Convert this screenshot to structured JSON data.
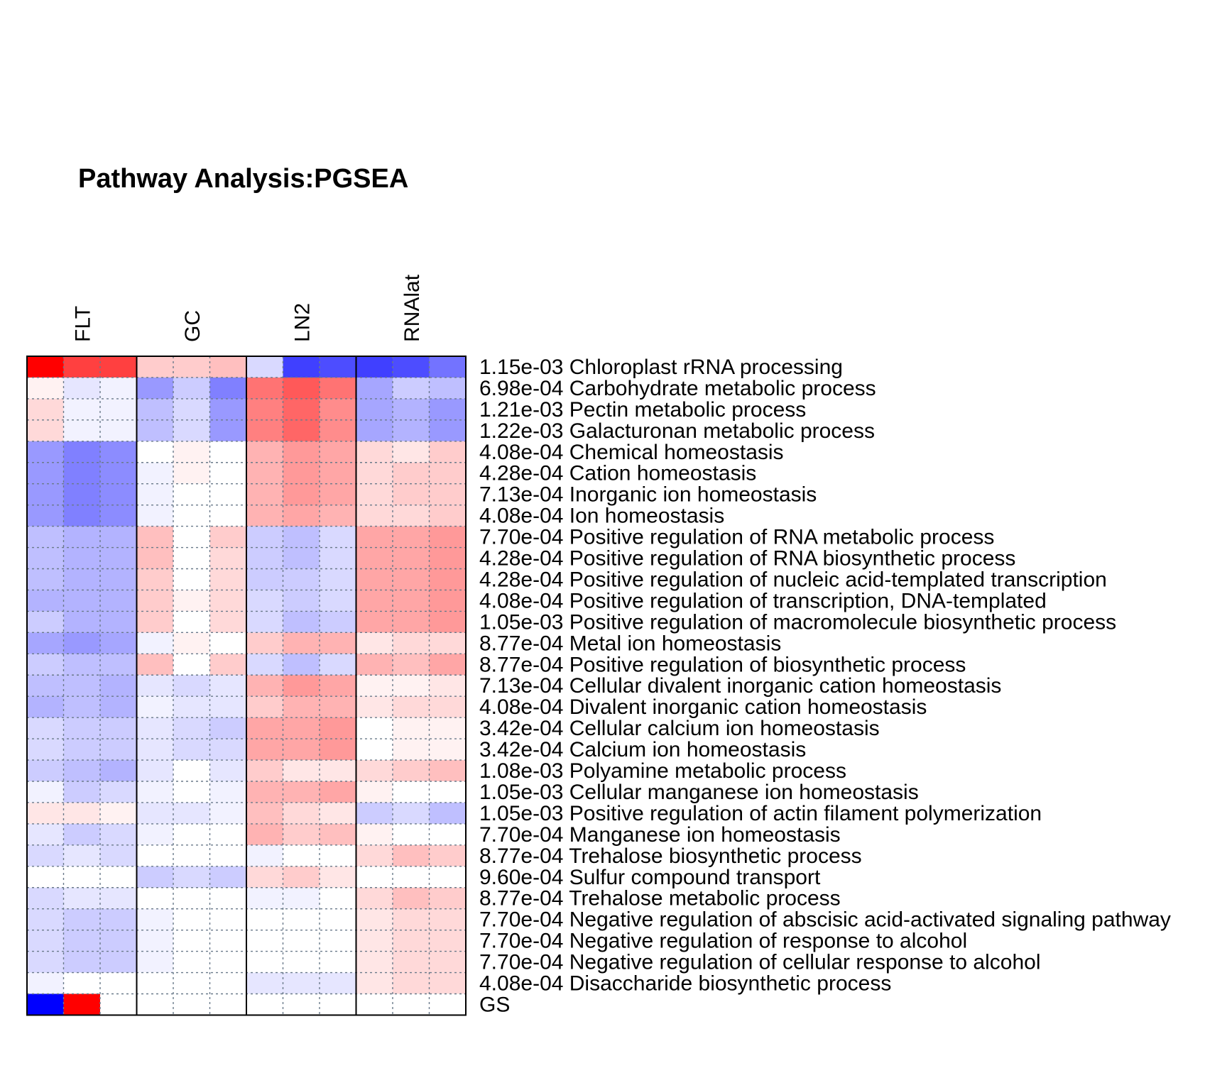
{
  "chart_data": {
    "type": "heatmap",
    "title": "Pathway Analysis:PGSEA",
    "groups": [
      "FLT",
      "GC",
      "LN2",
      "RNAlat"
    ],
    "columns_per_group": 3,
    "color_scale": {
      "low": "#0000ff",
      "mid": "#ffffff",
      "high": "#ff0000",
      "range": [
        -1,
        1
      ]
    },
    "grid": true,
    "rows": [
      {
        "label": "1.15e-03 Chloroplast rRNA processing",
        "values": [
          1.0,
          0.75,
          0.75,
          0.2,
          0.2,
          0.25,
          -0.15,
          -0.75,
          -0.7,
          -0.75,
          -0.7,
          -0.55
        ]
      },
      {
        "label": "6.98e-04 Carbohydrate metabolic process",
        "values": [
          0.05,
          -0.1,
          -0.05,
          -0.4,
          -0.2,
          -0.5,
          0.55,
          0.65,
          0.55,
          -0.35,
          -0.2,
          -0.25
        ]
      },
      {
        "label": "1.21e-03 Pectin metabolic process",
        "values": [
          0.15,
          -0.05,
          -0.05,
          -0.25,
          -0.15,
          -0.4,
          0.5,
          0.6,
          0.45,
          -0.35,
          -0.3,
          -0.4
        ]
      },
      {
        "label": "1.22e-03 Galacturonan metabolic process",
        "values": [
          0.15,
          -0.05,
          -0.05,
          -0.25,
          -0.15,
          -0.4,
          0.5,
          0.6,
          0.45,
          -0.35,
          -0.3,
          -0.4
        ]
      },
      {
        "label": "4.08e-04 Chemical homeostasis",
        "values": [
          -0.4,
          -0.5,
          -0.45,
          0.0,
          0.05,
          0.0,
          0.3,
          0.4,
          0.35,
          0.15,
          0.1,
          0.2
        ]
      },
      {
        "label": "4.28e-04 Cation homeostasis",
        "values": [
          -0.4,
          -0.5,
          -0.45,
          -0.05,
          0.05,
          0.0,
          0.3,
          0.4,
          0.35,
          0.15,
          0.2,
          0.2
        ]
      },
      {
        "label": "7.13e-04 Inorganic ion homeostasis",
        "values": [
          -0.4,
          -0.5,
          -0.45,
          -0.05,
          0.0,
          0.0,
          0.3,
          0.4,
          0.35,
          0.15,
          0.2,
          0.2
        ]
      },
      {
        "label": "4.08e-04 Ion homeostasis",
        "values": [
          -0.4,
          -0.5,
          -0.45,
          -0.05,
          0.0,
          0.0,
          0.3,
          0.35,
          0.3,
          0.15,
          0.15,
          0.2
        ]
      },
      {
        "label": "7.70e-04 Positive regulation of RNA metabolic process",
        "values": [
          -0.25,
          -0.3,
          -0.3,
          0.25,
          0.0,
          0.2,
          -0.2,
          -0.25,
          -0.15,
          0.35,
          0.35,
          0.4
        ]
      },
      {
        "label": "4.28e-04 Positive regulation of RNA biosynthetic process",
        "values": [
          -0.25,
          -0.3,
          -0.3,
          0.25,
          0.0,
          0.15,
          -0.2,
          -0.25,
          -0.15,
          0.35,
          0.35,
          0.4
        ]
      },
      {
        "label": "4.28e-04 Positive regulation of nucleic acid-templated transcription",
        "values": [
          -0.25,
          -0.3,
          -0.3,
          0.2,
          0.0,
          0.15,
          -0.2,
          -0.2,
          -0.15,
          0.35,
          0.35,
          0.4
        ]
      },
      {
        "label": "4.08e-04 Positive regulation of transcription, DNA-templated",
        "values": [
          -0.3,
          -0.3,
          -0.3,
          0.2,
          0.05,
          0.15,
          -0.15,
          -0.2,
          -0.15,
          0.35,
          0.35,
          0.4
        ]
      },
      {
        "label": "1.05e-03 Positive regulation of macromolecule biosynthetic process",
        "values": [
          -0.2,
          -0.3,
          -0.3,
          0.2,
          0.0,
          0.15,
          -0.15,
          -0.25,
          -0.2,
          0.35,
          0.35,
          0.4
        ]
      },
      {
        "label": "8.77e-04 Metal ion homeostasis",
        "values": [
          -0.35,
          -0.4,
          -0.35,
          -0.05,
          0.05,
          0.0,
          0.2,
          0.3,
          0.3,
          0.1,
          0.15,
          0.15
        ]
      },
      {
        "label": "8.77e-04 Positive regulation of biosynthetic process",
        "values": [
          -0.2,
          -0.25,
          -0.25,
          0.25,
          0.0,
          0.2,
          -0.15,
          -0.25,
          -0.15,
          0.3,
          0.25,
          0.35
        ]
      },
      {
        "label": "7.13e-04 Cellular divalent inorganic cation homeostasis",
        "values": [
          -0.25,
          -0.25,
          -0.3,
          -0.1,
          -0.15,
          -0.1,
          0.3,
          0.4,
          0.35,
          0.05,
          0.05,
          0.1
        ]
      },
      {
        "label": "4.08e-04 Divalent inorganic cation homeostasis",
        "values": [
          -0.3,
          -0.25,
          -0.3,
          -0.05,
          -0.1,
          -0.1,
          0.2,
          0.3,
          0.3,
          0.1,
          0.15,
          0.15
        ]
      },
      {
        "label": "3.42e-04 Cellular calcium ion homeostasis",
        "values": [
          -0.15,
          -0.2,
          -0.2,
          -0.1,
          -0.15,
          -0.2,
          0.35,
          0.35,
          0.4,
          0.0,
          0.05,
          0.05
        ]
      },
      {
        "label": "3.42e-04 Calcium ion homeostasis",
        "values": [
          -0.15,
          -0.2,
          -0.2,
          -0.1,
          -0.15,
          -0.15,
          0.35,
          0.35,
          0.4,
          0.0,
          0.05,
          0.05
        ]
      },
      {
        "label": "1.08e-03 Polyamine metabolic process",
        "values": [
          -0.2,
          -0.25,
          -0.3,
          -0.1,
          0.0,
          -0.1,
          0.2,
          0.1,
          0.1,
          0.15,
          0.2,
          0.25
        ]
      },
      {
        "label": "1.05e-03 Cellular manganese ion homeostasis",
        "values": [
          -0.05,
          -0.2,
          -0.15,
          -0.05,
          0.0,
          -0.05,
          0.3,
          0.3,
          0.35,
          0.05,
          0.0,
          0.0
        ]
      },
      {
        "label": "1.05e-03 Positive regulation of actin filament polymerization",
        "values": [
          0.1,
          0.1,
          0.05,
          -0.1,
          -0.1,
          -0.05,
          0.25,
          0.15,
          0.1,
          -0.2,
          -0.15,
          -0.25
        ]
      },
      {
        "label": "7.70e-04 Manganese ion homeostasis",
        "values": [
          -0.1,
          -0.2,
          -0.15,
          -0.05,
          0.0,
          0.0,
          0.3,
          0.2,
          0.25,
          0.05,
          0.0,
          0.0
        ]
      },
      {
        "label": "8.77e-04 Trehalose biosynthetic process",
        "values": [
          -0.15,
          -0.1,
          -0.15,
          0.0,
          0.0,
          0.0,
          -0.05,
          0.0,
          0.0,
          0.15,
          0.25,
          0.2
        ]
      },
      {
        "label": "9.60e-04 Sulfur compound transport",
        "values": [
          0.0,
          0.0,
          0.0,
          -0.2,
          -0.15,
          -0.2,
          0.15,
          0.2,
          0.1,
          0.0,
          0.0,
          0.0
        ]
      },
      {
        "label": "8.77e-04 Trehalose metabolic process",
        "values": [
          -0.15,
          -0.1,
          -0.1,
          0.0,
          0.0,
          0.0,
          -0.05,
          -0.05,
          0.0,
          0.15,
          0.25,
          0.2
        ]
      },
      {
        "label": "7.70e-04 Negative regulation of abscisic acid-activated signaling pathway",
        "values": [
          -0.15,
          -0.2,
          -0.2,
          -0.05,
          0.0,
          0.0,
          0.0,
          0.0,
          0.0,
          0.1,
          0.15,
          0.15
        ]
      },
      {
        "label": "7.70e-04 Negative regulation of response to alcohol",
        "values": [
          -0.15,
          -0.2,
          -0.2,
          -0.05,
          0.0,
          0.0,
          0.0,
          0.0,
          0.0,
          0.1,
          0.15,
          0.15
        ]
      },
      {
        "label": "7.70e-04 Negative regulation of cellular response to alcohol",
        "values": [
          -0.15,
          -0.2,
          -0.2,
          -0.05,
          0.0,
          0.0,
          0.0,
          0.0,
          0.0,
          0.1,
          0.15,
          0.15
        ]
      },
      {
        "label": "4.08e-04 Disaccharide biosynthetic process",
        "values": [
          -0.05,
          0.0,
          0.0,
          0.0,
          0.0,
          0.0,
          -0.1,
          -0.1,
          -0.1,
          0.1,
          0.15,
          0.15
        ]
      },
      {
        "label": "GS",
        "values": [
          -1.0,
          1.0,
          0.0,
          0.0,
          0.0,
          0.0,
          0.0,
          0.0,
          0.0,
          0.0,
          0.0,
          0.0
        ]
      }
    ]
  }
}
